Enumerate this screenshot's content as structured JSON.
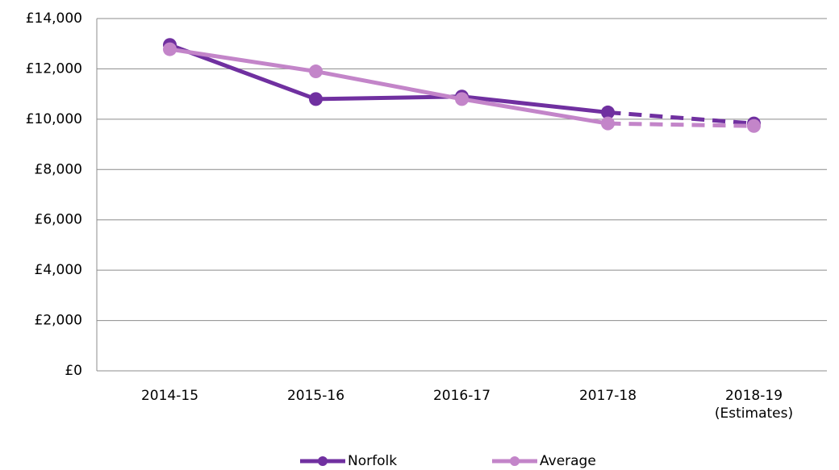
{
  "chart_data": {
    "type": "line",
    "categories": [
      "2014-15",
      "2015-16",
      "2016-17",
      "2017-18",
      "2018-19 (Estimates)"
    ],
    "series": [
      {
        "name": "Norfolk",
        "color": "#7030a0",
        "values": [
          12950,
          10800,
          10900,
          10270,
          9830
        ]
      },
      {
        "name": "Average",
        "color": "#c385c9",
        "values": [
          12780,
          11900,
          10800,
          9830,
          9730
        ]
      }
    ],
    "ylim": [
      0,
      14000
    ],
    "yticks": [
      {
        "value": 0,
        "label": "£0"
      },
      {
        "value": 2000,
        "label": "£2,000"
      },
      {
        "value": 4000,
        "label": "£4,000"
      },
      {
        "value": 6000,
        "label": "£6,000"
      },
      {
        "value": 8000,
        "label": "£8,000"
      },
      {
        "value": 10000,
        "label": "£10,000"
      },
      {
        "value": 12000,
        "label": "£12,000"
      },
      {
        "value": 14000,
        "label": "£14,000"
      }
    ],
    "grid": true,
    "dashed_last_segment": true,
    "legend": "bottom"
  }
}
